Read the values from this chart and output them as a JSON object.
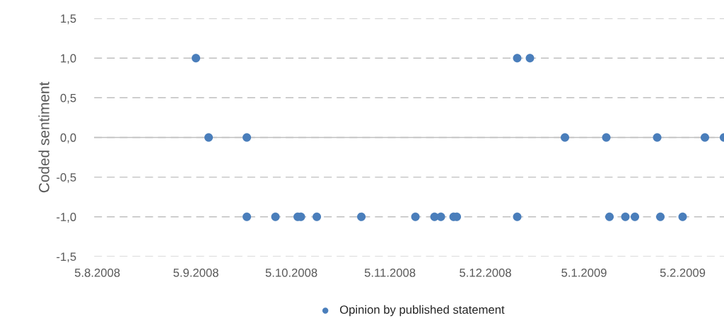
{
  "chart_data": {
    "type": "scatter",
    "ylabel": "Coded sentiment",
    "series": [
      {
        "name": "Opinion by published statement",
        "color": "#4a7ebb",
        "x": [
          "2008-09-05",
          "2008-12-15",
          "2008-12-19",
          "2008-09-09",
          "2008-09-21",
          "2008-12-30",
          "2009-01-12",
          "2009-01-28",
          "2009-02-12",
          "2009-02-18",
          "2008-09-21",
          "2008-09-30",
          "2008-10-07",
          "2008-10-08",
          "2008-10-13",
          "2008-10-27",
          "2008-11-13",
          "2008-11-19",
          "2008-11-21",
          "2008-11-25",
          "2008-11-26",
          "2008-12-15",
          "2009-01-13",
          "2009-01-18",
          "2009-01-21",
          "2009-01-29",
          "2009-02-05"
        ],
        "values": [
          1,
          1,
          1,
          0,
          0,
          0,
          0,
          0,
          0,
          0,
          -1,
          -1,
          -1,
          -1,
          -1,
          -1,
          -1,
          -1,
          -1,
          -1,
          -1,
          -1,
          -1,
          -1,
          -1,
          -1,
          -1
        ]
      }
    ],
    "xlim": [
      "2008-08-04",
      "2009-02-18"
    ],
    "xticks": [
      {
        "value": "2008-08-05",
        "label": "5.8.2008"
      },
      {
        "value": "2008-09-05",
        "label": "5.9.2008"
      },
      {
        "value": "2008-10-05",
        "label": "5.10.2008"
      },
      {
        "value": "2008-11-05",
        "label": "5.11.2008"
      },
      {
        "value": "2008-12-05",
        "label": "5.12.2008"
      },
      {
        "value": "2009-01-05",
        "label": "5.1.2009"
      },
      {
        "value": "2009-02-05",
        "label": "5.2.2009"
      }
    ],
    "ylim": [
      -1.5,
      1.5
    ],
    "yticks": [
      {
        "value": -1.5,
        "label": "-1,5"
      },
      {
        "value": -1,
        "label": "-1,0"
      },
      {
        "value": -0.5,
        "label": "-0,5"
      },
      {
        "value": 0,
        "label": "0,0"
      },
      {
        "value": 0.5,
        "label": "0,5"
      },
      {
        "value": 1,
        "label": "1,0"
      },
      {
        "value": 1.5,
        "label": "1,5"
      }
    ],
    "grid": "y",
    "legend": "bottom",
    "marker": "circle"
  }
}
